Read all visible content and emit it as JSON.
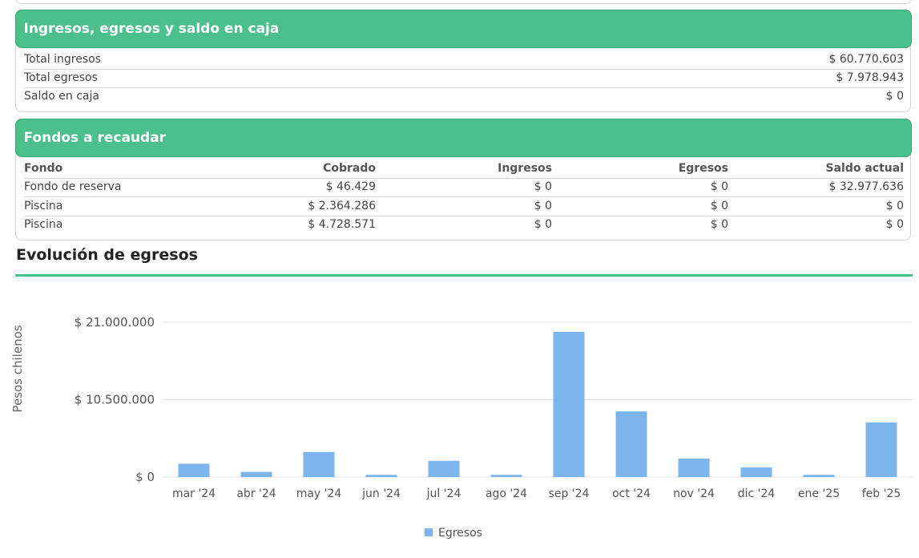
{
  "summary": {
    "title": "Ingresos, egresos y saldo en caja",
    "rows": [
      {
        "label": "Total ingresos",
        "value": "$ 60.770.603"
      },
      {
        "label": "Total egresos",
        "value": "$ 7.978.943"
      },
      {
        "label": "Saldo en caja",
        "value": "$ 0"
      }
    ]
  },
  "funds": {
    "title": "Fondos a recaudar",
    "headers": [
      "Fondo",
      "Cobrado",
      "Ingresos",
      "Egresos",
      "Saldo actual"
    ],
    "rows": [
      [
        "Fondo de reserva",
        "$ 46.429",
        "$ 0",
        "$ 0",
        "$ 32.977.636"
      ],
      [
        "Piscina",
        "$ 2.364.286",
        "$ 0",
        "$ 0",
        "$ 0"
      ],
      [
        "Piscina",
        "$ 4.728.571",
        "$ 0",
        "$ 0",
        "$ 0"
      ]
    ]
  },
  "chart_section_title": "Evolución de egresos",
  "chart_data": {
    "type": "bar",
    "categories": [
      "mar '24",
      "abr '24",
      "may '24",
      "jun '24",
      "jul '24",
      "ago '24",
      "sep '24",
      "oct '24",
      "nov '24",
      "dic '24",
      "ene '25",
      "feb '25"
    ],
    "series": [
      {
        "name": "Egresos",
        "values": [
          1800000,
          700000,
          3400000,
          300000,
          2200000,
          300000,
          19700000,
          8900000,
          2500000,
          1300000,
          300000,
          7400000
        ],
        "color": "#7cb5ec"
      }
    ],
    "ylabel": "Pesos chilenos",
    "ylim": [
      0,
      21000000
    ],
    "yticks": [
      0,
      10500000,
      21000000
    ],
    "ytick_labels": [
      "$ 0",
      "$ 10.500.000",
      "$ 21.000.000"
    ],
    "grid": true,
    "legend": "bottom-center"
  }
}
